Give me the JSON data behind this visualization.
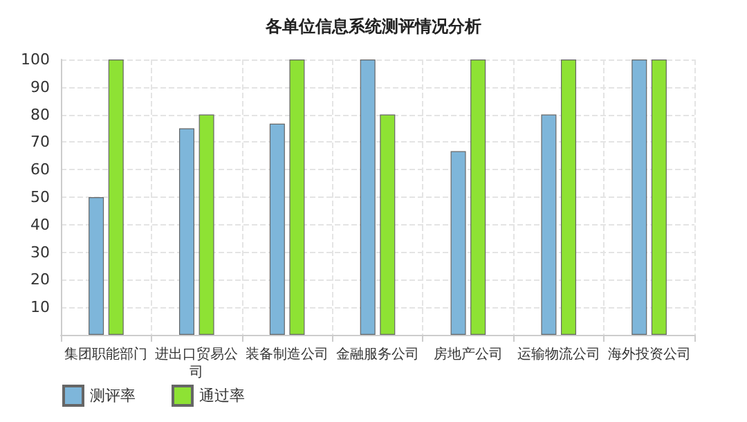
{
  "chart_data": {
    "type": "bar",
    "title": "各单位信息系统测评情况分析",
    "categories": [
      "集团职能部门",
      "进出口贸易公司",
      "装备制造公司",
      "金融服务公司",
      "房地产公司",
      "运输物流公司",
      "海外投资公司"
    ],
    "series": [
      {
        "name": "测评率",
        "color": "#7eb6da",
        "values": [
          50,
          75,
          76.7,
          100,
          66.7,
          80,
          100
        ]
      },
      {
        "name": "通过率",
        "color": "#8ee234",
        "values": [
          100,
          80,
          100,
          80,
          100,
          100,
          100
        ]
      }
    ],
    "ylim": [
      0,
      100
    ],
    "yticks": [
      10,
      20,
      30,
      40,
      50,
      60,
      70,
      80,
      90,
      100
    ],
    "grid": true,
    "legend": "bottom left"
  }
}
